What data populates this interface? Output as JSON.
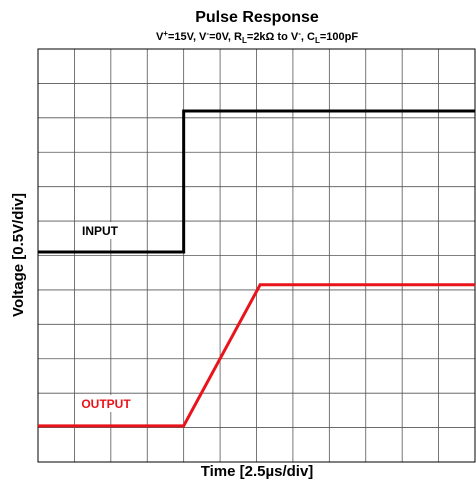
{
  "chart_data": {
    "type": "line",
    "title": "Pulse Response",
    "subtitle_parts": [
      "V",
      "+",
      "=15V, V",
      "-",
      "=0V, R",
      "L",
      "=2kΩ to V",
      "-",
      ", C",
      "L",
      "=100pF"
    ],
    "xlabel": "Time [2.5µs/div]",
    "ylabel": "Voltage [0.5V/div]",
    "xlim": [
      0,
      12
    ],
    "ylim": [
      0,
      12
    ],
    "xticks": [
      0,
      1,
      2,
      3,
      4,
      5,
      6,
      7,
      8,
      9,
      10,
      11,
      12
    ],
    "yticks": [
      0,
      1,
      2,
      3,
      4,
      5,
      6,
      7,
      8,
      9,
      10,
      11,
      12
    ],
    "grid": true,
    "series": [
      {
        "name": "INPUT",
        "color": "#000000",
        "x": [
          0,
          4,
          4,
          12
        ],
        "values": [
          6.1,
          6.1,
          10.2,
          10.2
        ]
      },
      {
        "name": "OUTPUT",
        "color": "#e8141a",
        "x": [
          0,
          4,
          6.1,
          12
        ],
        "values": [
          1.05,
          1.05,
          5.15,
          5.15
        ]
      }
    ]
  }
}
